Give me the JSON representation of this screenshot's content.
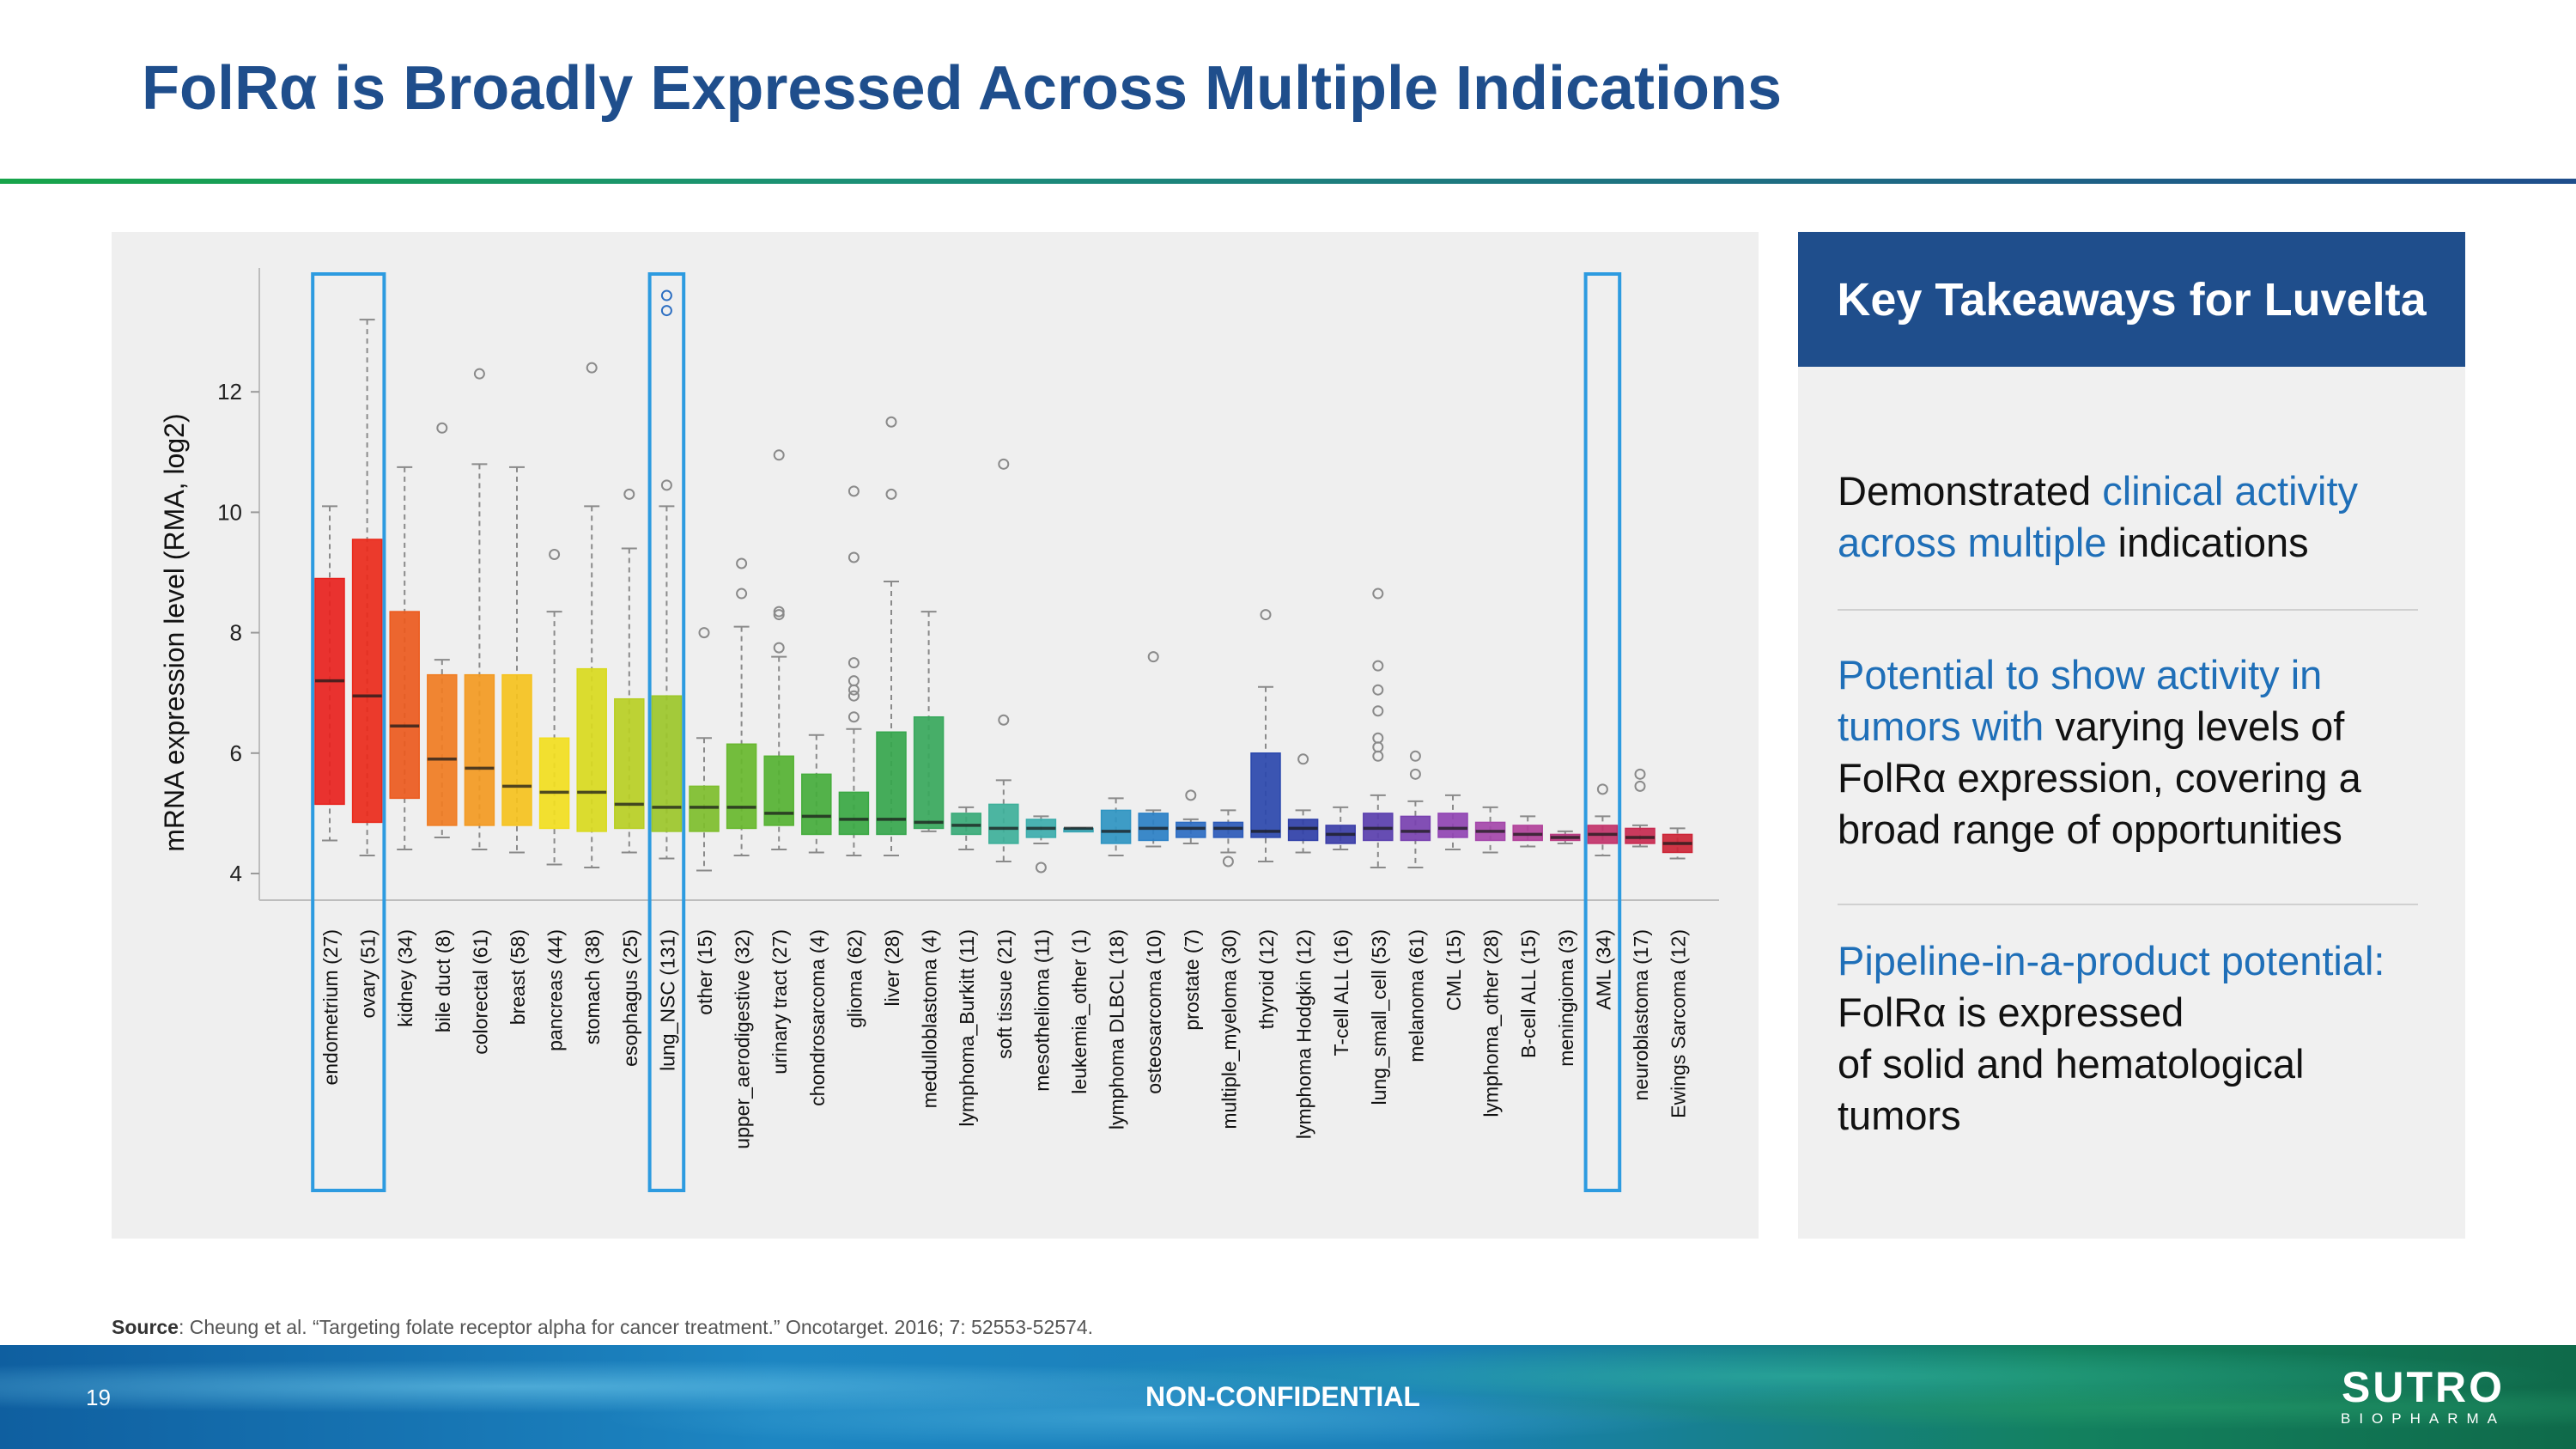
{
  "title": "FolRα is Broadly Expressed Across Multiple Indications",
  "side_panel": {
    "header": "Key Takeaways for Luvelta",
    "takeaway1": {
      "plain_a": "Demonstrated ",
      "hl": "clinical activity across multiple",
      "plain_b": " indications"
    },
    "takeaway2": {
      "hl": "Potential to show activity in tumors with",
      "plain": " varying levels of FolRα expression, covering a broad range of opportunities"
    },
    "takeaway3": {
      "hl": "Pipeline-in-a-product potential:",
      "line1": "FolRα is expressed",
      "line2": "of solid and hematological tumors"
    }
  },
  "source": {
    "label": "Source",
    "text": ": Cheung et al. “Targeting folate receptor alpha for cancer treatment.” Oncotarget. 2016; 7: 52553-52574."
  },
  "footer": {
    "page_number": "19",
    "classification": "NON-CONFIDENTIAL",
    "logo_main": "SUTRO",
    "logo_sub": "BIOPHARMA"
  },
  "chart_data": {
    "type": "boxplot",
    "ylabel": "mRNA expression level (RMA, log2)",
    "ylim": [
      3.6,
      13.3
    ],
    "yticks": [
      4,
      6,
      8,
      10,
      12
    ],
    "highlighted_categories": [
      [
        "endometrium (27)",
        "ovary (51)"
      ],
      [
        "lung_NSC (131)"
      ],
      [
        "AML (34)"
      ]
    ],
    "categories": [
      {
        "label": "endometrium (27)",
        "min": 4.55,
        "q1": 5.15,
        "median": 7.2,
        "q3": 8.9,
        "max": 10.1,
        "outliers": [],
        "color": "#e8221e"
      },
      {
        "label": "ovary (51)",
        "min": 4.3,
        "q1": 4.85,
        "median": 6.95,
        "q3": 9.55,
        "max": 13.2,
        "outliers": [],
        "color": "#ea2a1b"
      },
      {
        "label": "kidney (34)",
        "min": 4.4,
        "q1": 5.25,
        "median": 6.45,
        "q3": 8.35,
        "max": 10.75,
        "outliers": [],
        "color": "#ec5a1e"
      },
      {
        "label": "bile duct (8)",
        "min": 4.6,
        "q1": 4.8,
        "median": 5.9,
        "q3": 7.3,
        "max": 7.55,
        "outliers": [
          11.4
        ],
        "color": "#f07c22"
      },
      {
        "label": "colorectal (61)",
        "min": 4.4,
        "q1": 4.8,
        "median": 5.75,
        "q3": 7.3,
        "max": 10.8,
        "outliers": [
          12.3
        ],
        "color": "#f39a22"
      },
      {
        "label": "breast (58)",
        "min": 4.35,
        "q1": 4.8,
        "median": 5.45,
        "q3": 7.3,
        "max": 10.75,
        "outliers": [],
        "color": "#f5c21e"
      },
      {
        "label": "pancreas (44)",
        "min": 4.15,
        "q1": 4.75,
        "median": 5.35,
        "q3": 6.25,
        "max": 8.35,
        "outliers": [
          9.3
        ],
        "color": "#f2de1f"
      },
      {
        "label": "stomach (38)",
        "min": 4.1,
        "q1": 4.7,
        "median": 5.35,
        "q3": 7.4,
        "max": 10.1,
        "outliers": [
          12.4
        ],
        "color": "#d9da1e"
      },
      {
        "label": "esophagus (25)",
        "min": 4.35,
        "q1": 4.75,
        "median": 5.15,
        "q3": 6.9,
        "max": 9.4,
        "outliers": [
          10.3
        ],
        "color": "#b8cf24"
      },
      {
        "label": "lung_NSC (131)",
        "min": 4.25,
        "q1": 4.7,
        "median": 5.1,
        "q3": 6.95,
        "max": 10.1,
        "outliers": [
          10.45,
          13.35,
          13.6
        ],
        "color": "#9cc72a"
      },
      {
        "label": "other (15)",
        "min": 4.05,
        "q1": 4.7,
        "median": 5.1,
        "q3": 5.45,
        "max": 6.25,
        "outliers": [
          8.0
        ],
        "color": "#7ebe2c"
      },
      {
        "label": "upper_aerodigestive (32)",
        "min": 4.3,
        "q1": 4.75,
        "median": 5.1,
        "q3": 6.15,
        "max": 8.1,
        "outliers": [
          8.65,
          9.15
        ],
        "color": "#68b82e"
      },
      {
        "label": "urinary tract (27)",
        "min": 4.4,
        "q1": 4.8,
        "median": 5.0,
        "q3": 5.95,
        "max": 7.6,
        "outliers": [
          7.75,
          8.3,
          8.35,
          10.95
        ],
        "color": "#55b232"
      },
      {
        "label": "chondrosarcoma (4)",
        "min": 4.35,
        "q1": 4.65,
        "median": 4.95,
        "q3": 5.65,
        "max": 6.3,
        "outliers": [],
        "color": "#45ad3c"
      },
      {
        "label": "glioma (62)",
        "min": 4.3,
        "q1": 4.65,
        "median": 4.9,
        "q3": 5.35,
        "max": 6.4,
        "outliers": [
          6.6,
          6.95,
          7.05,
          7.2,
          7.5,
          9.25,
          10.35
        ],
        "color": "#3aa843"
      },
      {
        "label": "liver (28)",
        "min": 4.3,
        "q1": 4.65,
        "median": 4.9,
        "q3": 6.35,
        "max": 8.85,
        "outliers": [
          10.3,
          11.5
        ],
        "color": "#36a64d"
      },
      {
        "label": "medulloblastoma (4)",
        "min": 4.7,
        "q1": 4.75,
        "median": 4.85,
        "q3": 6.6,
        "max": 8.35,
        "outliers": [],
        "color": "#38a85c"
      },
      {
        "label": "lymphoma_Burkitt (11)",
        "min": 4.4,
        "q1": 4.65,
        "median": 4.8,
        "q3": 5.0,
        "max": 5.1,
        "outliers": [],
        "color": "#3aaa78"
      },
      {
        "label": "soft tissue (21)",
        "min": 4.2,
        "q1": 4.5,
        "median": 4.75,
        "q3": 5.15,
        "max": 5.55,
        "outliers": [
          6.55,
          10.8
        ],
        "color": "#3eb09a"
      },
      {
        "label": "mesothelioma (11)",
        "min": 4.5,
        "q1": 4.6,
        "median": 4.75,
        "q3": 4.9,
        "max": 4.95,
        "outliers": [
          4.1
        ],
        "color": "#3cadac"
      },
      {
        "label": "leukemia_other (1)",
        "min": 4.75,
        "q1": 4.75,
        "median": 4.75,
        "q3": 4.75,
        "max": 4.75,
        "outliers": [],
        "color": "#36a4b2"
      },
      {
        "label": "lymphoma DLBCL (18)",
        "min": 4.3,
        "q1": 4.5,
        "median": 4.7,
        "q3": 5.05,
        "max": 5.25,
        "outliers": [],
        "color": "#2f95c2"
      },
      {
        "label": "osteosarcoma (10)",
        "min": 4.45,
        "q1": 4.55,
        "median": 4.75,
        "q3": 5.0,
        "max": 5.05,
        "outliers": [
          7.6
        ],
        "color": "#2b80c6"
      },
      {
        "label": "prostate (7)",
        "min": 4.5,
        "q1": 4.6,
        "median": 4.75,
        "q3": 4.85,
        "max": 4.9,
        "outliers": [
          5.3
        ],
        "color": "#2c6cc2"
      },
      {
        "label": "multiple_myeloma (30)",
        "min": 4.35,
        "q1": 4.6,
        "median": 4.75,
        "q3": 4.85,
        "max": 5.05,
        "outliers": [
          4.2
        ],
        "color": "#2c5ab9"
      },
      {
        "label": "thyroid (12)",
        "min": 4.2,
        "q1": 4.6,
        "median": 4.7,
        "q3": 6.0,
        "max": 7.1,
        "outliers": [
          8.3
        ],
        "color": "#2b48ad"
      },
      {
        "label": "lymphoma Hodgkin (12)",
        "min": 4.35,
        "q1": 4.55,
        "median": 4.75,
        "q3": 4.9,
        "max": 5.05,
        "outliers": [
          5.9
        ],
        "color": "#3040a8"
      },
      {
        "label": "T-cell ALL (16)",
        "min": 4.4,
        "q1": 4.5,
        "median": 4.65,
        "q3": 4.8,
        "max": 5.1,
        "outliers": [],
        "color": "#3b3ea8"
      },
      {
        "label": "lung_small_cell (53)",
        "min": 4.1,
        "q1": 4.55,
        "median": 4.75,
        "q3": 5.0,
        "max": 5.3,
        "outliers": [
          5.95,
          6.1,
          6.25,
          6.7,
          7.05,
          7.45,
          8.65
        ],
        "color": "#5a3fae"
      },
      {
        "label": "melanoma (61)",
        "min": 4.1,
        "q1": 4.55,
        "median": 4.7,
        "q3": 4.95,
        "max": 5.2,
        "outliers": [
          5.65,
          5.95
        ],
        "color": "#7841b0"
      },
      {
        "label": "CML (15)",
        "min": 4.4,
        "q1": 4.6,
        "median": 4.75,
        "q3": 5.0,
        "max": 5.3,
        "outliers": [],
        "color": "#9044b3"
      },
      {
        "label": "lymphoma_other (28)",
        "min": 4.35,
        "q1": 4.55,
        "median": 4.7,
        "q3": 4.85,
        "max": 5.1,
        "outliers": [],
        "color": "#a446aa"
      },
      {
        "label": "B-cell ALL (15)",
        "min": 4.45,
        "q1": 4.55,
        "median": 4.65,
        "q3": 4.8,
        "max": 4.95,
        "outliers": [],
        "color": "#b1419a"
      },
      {
        "label": "meningioma (3)",
        "min": 4.5,
        "q1": 4.55,
        "median": 4.6,
        "q3": 4.65,
        "max": 4.7,
        "outliers": [],
        "color": "#b93b82"
      },
      {
        "label": "AML (34)",
        "min": 4.3,
        "q1": 4.5,
        "median": 4.65,
        "q3": 4.8,
        "max": 4.95,
        "outliers": [
          5.4
        ],
        "color": "#c2336a"
      },
      {
        "label": "neuroblastoma (17)",
        "min": 4.45,
        "q1": 4.5,
        "median": 4.6,
        "q3": 4.75,
        "max": 4.8,
        "outliers": [
          5.45,
          5.65
        ],
        "color": "#c82a50"
      },
      {
        "label": "Ewings Sarcoma (12)",
        "min": 4.25,
        "q1": 4.35,
        "median": 4.5,
        "q3": 4.65,
        "max": 4.75,
        "outliers": [],
        "color": "#cc2536"
      }
    ]
  }
}
